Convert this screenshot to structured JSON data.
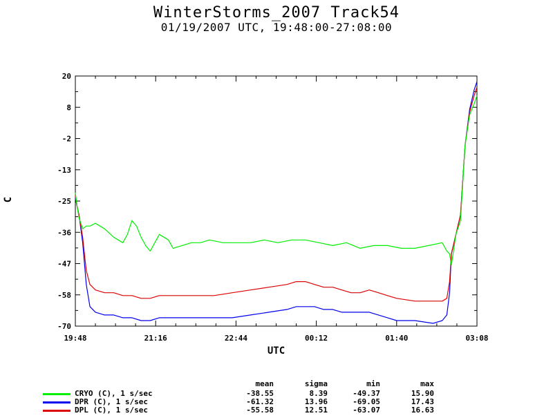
{
  "title": "WinterStorms_2007 Track54",
  "subtitle": "01/19/2007 UTC, 19:48:00-27:08:00",
  "colors": {
    "cryo": "#00ee00",
    "dpr": "#0000ee",
    "dpl": "#dd0000"
  },
  "stats": {
    "headers": [
      "mean",
      "sigma",
      "min",
      "max"
    ],
    "rows": [
      {
        "label": "CRYO (C), 1 s/sec",
        "values": [
          "-38.55",
          "8.39",
          "-49.37",
          "15.90"
        ]
      },
      {
        "label": "DPR (C), 1 s/sec",
        "values": [
          "-61.32",
          "13.96",
          "-69.05",
          "17.43"
        ]
      },
      {
        "label": "DPL (C), 1 s/sec",
        "values": [
          "-55.58",
          "12.51",
          "-63.07",
          "16.63"
        ]
      }
    ]
  },
  "chart_data": {
    "type": "line",
    "title": "WinterStorms_2007 Track54",
    "subtitle": "01/19/2007 UTC, 19:48:00-27:08:00",
    "xlabel": "UTC",
    "ylabel": "C",
    "xlim": [
      "19:48",
      "03:08"
    ],
    "ylim": [
      -70,
      20
    ],
    "x_ticks": [
      "19:48",
      "21:16",
      "22:44",
      "00:12",
      "01:40",
      "03:08"
    ],
    "y_ticks": [
      "20",
      "8",
      "-2",
      "-13",
      "-25",
      "-36",
      "-47",
      "-58",
      "-70"
    ],
    "grid": false,
    "series": [
      {
        "name": "CRYO (C), 1 s/sec",
        "x": [
          "19:48",
          "19:50",
          "19:52",
          "19:56",
          "20:00",
          "20:04",
          "20:10",
          "20:20",
          "20:30",
          "20:40",
          "20:45",
          "20:50",
          "20:55",
          "21:00",
          "21:05",
          "21:10",
          "21:20",
          "21:30",
          "21:35",
          "21:45",
          "21:55",
          "22:05",
          "22:15",
          "22:30",
          "22:45",
          "23:00",
          "23:15",
          "23:30",
          "23:45",
          "00:00",
          "00:15",
          "00:30",
          "00:45",
          "01:00",
          "01:15",
          "01:30",
          "01:45",
          "02:00",
          "02:15",
          "02:30",
          "02:35",
          "02:38",
          "02:40",
          "02:45",
          "02:50",
          "02:55",
          "03:00",
          "03:05",
          "03:08"
        ],
        "values": [
          -22,
          -27,
          -31,
          -35,
          -34,
          -34,
          -33,
          -35,
          -38,
          -40,
          -37,
          -32,
          -34,
          -38,
          -41,
          -43,
          -37,
          -39,
          -42,
          -41,
          -40,
          -40,
          -39,
          -40,
          -40,
          -40,
          -39,
          -40,
          -39,
          -39,
          -40,
          -41,
          -40,
          -42,
          -41,
          -41,
          -42,
          -42,
          -41,
          -40,
          -43,
          -44,
          -48,
          -37,
          -32,
          -5,
          6,
          10,
          13
        ]
      },
      {
        "name": "DPR (C), 1 s/sec",
        "x": [
          "19:48",
          "19:50",
          "19:52",
          "19:56",
          "20:00",
          "20:04",
          "20:10",
          "20:20",
          "20:30",
          "20:40",
          "20:50",
          "21:00",
          "21:10",
          "21:20",
          "21:30",
          "21:40",
          "22:00",
          "22:20",
          "22:40",
          "23:00",
          "23:20",
          "23:40",
          "23:50",
          "00:00",
          "00:10",
          "00:20",
          "00:30",
          "00:40",
          "00:50",
          "01:00",
          "01:10",
          "01:20",
          "01:30",
          "01:40",
          "02:00",
          "02:20",
          "02:30",
          "02:35",
          "02:38",
          "02:40",
          "02:45",
          "02:50",
          "02:55",
          "03:00",
          "03:05",
          "03:08"
        ],
        "values": [
          -24,
          -27,
          -30,
          -40,
          -55,
          -63,
          -65,
          -66,
          -66,
          -67,
          -67,
          -68,
          -68,
          -67,
          -67,
          -67,
          -67,
          -67,
          -67,
          -66,
          -65,
          -64,
          -63,
          -63,
          -63,
          -64,
          -64,
          -65,
          -65,
          -65,
          -65,
          -66,
          -67,
          -68,
          -68,
          -69,
          -68,
          -66,
          -58,
          -44,
          -37,
          -30,
          -5,
          8,
          15,
          18
        ]
      },
      {
        "name": "DPL (C), 1 s/sec",
        "x": [
          "19:48",
          "19:50",
          "19:52",
          "19:56",
          "20:00",
          "20:04",
          "20:10",
          "20:20",
          "20:30",
          "20:40",
          "20:50",
          "21:00",
          "21:10",
          "21:20",
          "21:30",
          "21:40",
          "22:00",
          "22:20",
          "22:40",
          "23:00",
          "23:20",
          "23:40",
          "23:50",
          "00:00",
          "00:10",
          "00:20",
          "00:30",
          "00:40",
          "00:50",
          "01:00",
          "01:10",
          "01:20",
          "01:30",
          "01:40",
          "02:00",
          "02:20",
          "02:30",
          "02:35",
          "02:38",
          "02:40",
          "02:45",
          "02:50",
          "02:55",
          "03:00",
          "03:05",
          "03:08"
        ],
        "values": [
          -23,
          -27,
          -30,
          -38,
          -50,
          -55,
          -57,
          -58,
          -58,
          -59,
          -59,
          -60,
          -60,
          -59,
          -59,
          -59,
          -59,
          -59,
          -58,
          -57,
          -56,
          -55,
          -54,
          -54,
          -55,
          -56,
          -56,
          -57,
          -58,
          -58,
          -57,
          -58,
          -59,
          -60,
          -61,
          -61,
          -61,
          -60,
          -54,
          -44,
          -37,
          -30,
          -5,
          7,
          13,
          16
        ]
      }
    ]
  }
}
